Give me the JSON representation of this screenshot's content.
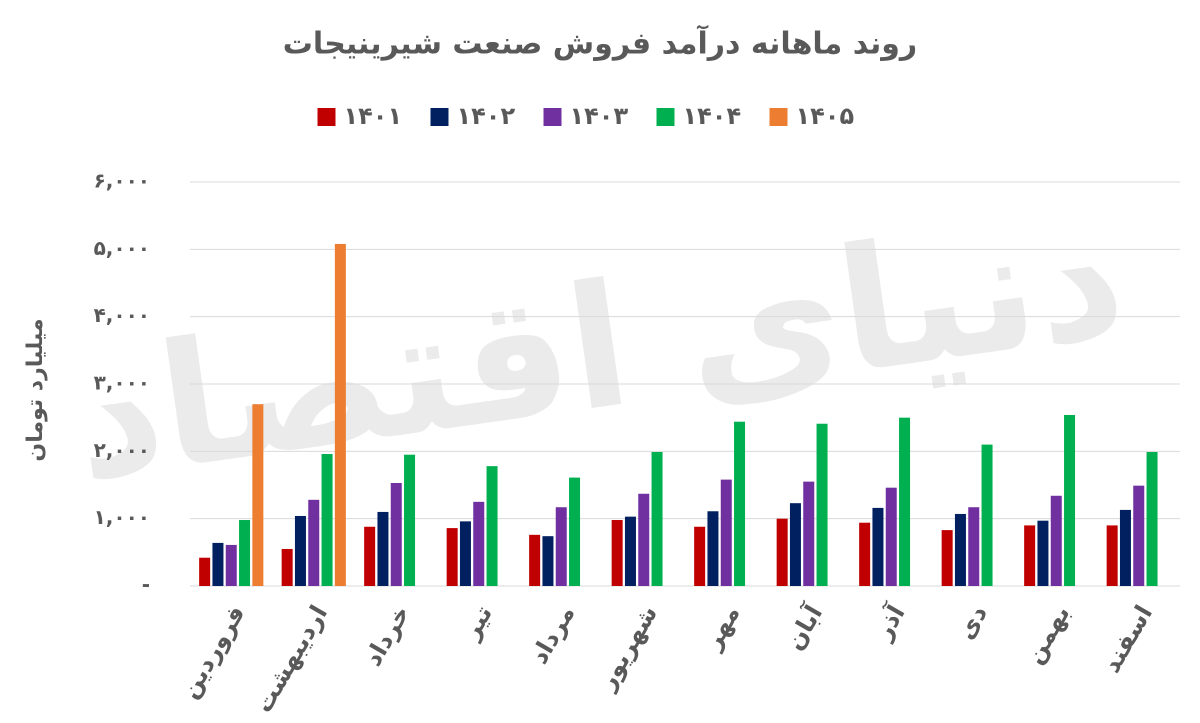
{
  "chart_data": {
    "type": "bar",
    "title": "روند ماهانه درآمد فروش صنعت شیرینیجات",
    "y_label": "میلیارد تومان",
    "watermark": "دنیای اقتصاد",
    "categories": [
      "فروردین",
      "اردیبهشت",
      "خرداد",
      "تیر",
      "مرداد",
      "شهریور",
      "مهر",
      "آبان",
      "آذر",
      "دی",
      "بهمن",
      "اسفند"
    ],
    "series": [
      {
        "name": "۱۴۰۱",
        "color": "#c00000",
        "values": [
          420,
          550,
          880,
          860,
          760,
          980,
          880,
          1000,
          940,
          830,
          900,
          900
        ]
      },
      {
        "name": "۱۴۰۲",
        "color": "#002060",
        "values": [
          640,
          1040,
          1100,
          960,
          740,
          1030,
          1110,
          1230,
          1160,
          1070,
          970,
          1130
        ]
      },
      {
        "name": "۱۴۰۳",
        "color": "#7030a0",
        "values": [
          610,
          1280,
          1530,
          1250,
          1170,
          1370,
          1580,
          1550,
          1460,
          1170,
          1340,
          1490
        ]
      },
      {
        "name": "۱۴۰۴",
        "color": "#00b050",
        "values": [
          980,
          1960,
          1950,
          1780,
          1610,
          1990,
          2440,
          2410,
          2500,
          2100,
          2540,
          1990
        ]
      },
      {
        "name": "۱۴۰۵",
        "color": "#ed7d31",
        "values": [
          2700,
          5080,
          null,
          null,
          null,
          null,
          null,
          null,
          null,
          null,
          null,
          null
        ]
      }
    ],
    "ylim": [
      0,
      6000
    ],
    "yticks": [
      {
        "value": 0,
        "label": "-"
      },
      {
        "value": 1000,
        "label": "۱,۰۰۰"
      },
      {
        "value": 2000,
        "label": "۲,۰۰۰"
      },
      {
        "value": 3000,
        "label": "۳,۰۰۰"
      },
      {
        "value": 4000,
        "label": "۴,۰۰۰"
      },
      {
        "value": 5000,
        "label": "۵,۰۰۰"
      },
      {
        "value": 6000,
        "label": "۶,۰۰۰"
      }
    ],
    "grid": true
  }
}
